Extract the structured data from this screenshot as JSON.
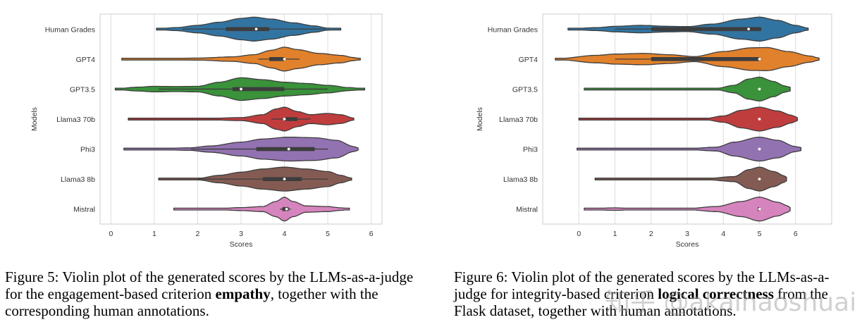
{
  "chart_data": [
    {
      "type": "violin",
      "id": "fig5",
      "title": "",
      "xlabel": "Scores",
      "ylabel": "Models",
      "xlim": [
        -0.25,
        6.25
      ],
      "xticks": [
        0,
        1,
        2,
        3,
        4,
        5,
        6
      ],
      "grid": true,
      "categories": [
        "Human Grades",
        "GPT4",
        "GPT3.5",
        "Llama3 70b",
        "Phi3",
        "Llama3 8b",
        "Mistral"
      ],
      "colors": [
        "#3274a1",
        "#e1812c",
        "#3a923a",
        "#c03d3e",
        "#9372b2",
        "#845b53",
        "#d684bd"
      ],
      "series": [
        {
          "name": "Human Grades",
          "min": 1.05,
          "max": 5.3,
          "q1": 2.65,
          "median": 3.35,
          "q3": 3.65,
          "whisker_low": 1.65,
          "whisker_high": 4.95,
          "density": [
            [
              1.05,
              0.02
            ],
            [
              1.5,
              0.12
            ],
            [
              2.0,
              0.3
            ],
            [
              2.5,
              0.55
            ],
            [
              3.0,
              0.85
            ],
            [
              3.3,
              0.95
            ],
            [
              3.7,
              0.8
            ],
            [
              4.2,
              0.5
            ],
            [
              4.7,
              0.25
            ],
            [
              5.0,
              0.08
            ],
            [
              5.3,
              0.02
            ]
          ]
        },
        {
          "name": "GPT4",
          "min": 0.25,
          "max": 5.75,
          "q1": 3.65,
          "median": 4.0,
          "q3": 4.0,
          "whisker_low": 3.4,
          "whisker_high": 4.35,
          "density": [
            [
              0.25,
              0.02
            ],
            [
              1.0,
              0.04
            ],
            [
              2.0,
              0.08
            ],
            [
              2.8,
              0.18
            ],
            [
              3.3,
              0.35
            ],
            [
              3.7,
              0.7
            ],
            [
              4.0,
              0.95
            ],
            [
              4.3,
              0.75
            ],
            [
              4.8,
              0.45
            ],
            [
              5.3,
              0.3
            ],
            [
              5.6,
              0.12
            ],
            [
              5.75,
              0.04
            ]
          ]
        },
        {
          "name": "GPT3.5",
          "min": 0.1,
          "max": 5.85,
          "q1": 2.8,
          "median": 3.0,
          "q3": 4.0,
          "whisker_low": 1.1,
          "whisker_high": 5.0,
          "density": [
            [
              0.1,
              0.02
            ],
            [
              0.6,
              0.15
            ],
            [
              1.0,
              0.22
            ],
            [
              1.5,
              0.2
            ],
            [
              2.0,
              0.22
            ],
            [
              2.5,
              0.55
            ],
            [
              3.0,
              0.9
            ],
            [
              3.5,
              0.75
            ],
            [
              4.0,
              0.55
            ],
            [
              4.5,
              0.45
            ],
            [
              5.0,
              0.3
            ],
            [
              5.5,
              0.12
            ],
            [
              5.85,
              0.02
            ]
          ]
        },
        {
          "name": "Llama3 70b",
          "min": 0.4,
          "max": 5.6,
          "q1": 4.0,
          "median": 4.0,
          "q3": 4.3,
          "whisker_low": 3.7,
          "whisker_high": 4.6,
          "density": [
            [
              0.4,
              0.02
            ],
            [
              2.0,
              0.03
            ],
            [
              3.0,
              0.12
            ],
            [
              3.5,
              0.35
            ],
            [
              3.8,
              0.8
            ],
            [
              4.0,
              0.95
            ],
            [
              4.3,
              0.6
            ],
            [
              4.6,
              0.35
            ],
            [
              5.0,
              0.45
            ],
            [
              5.3,
              0.35
            ],
            [
              5.6,
              0.08
            ]
          ]
        },
        {
          "name": "Phi3",
          "min": 0.3,
          "max": 5.7,
          "q1": 3.35,
          "median": 4.1,
          "q3": 4.7,
          "whisker_low": 1.85,
          "whisker_high": 5.0,
          "density": [
            [
              0.3,
              0.02
            ],
            [
              1.0,
              0.03
            ],
            [
              1.8,
              0.1
            ],
            [
              2.3,
              0.25
            ],
            [
              3.0,
              0.55
            ],
            [
              3.5,
              0.8
            ],
            [
              4.1,
              0.95
            ],
            [
              4.7,
              0.9
            ],
            [
              5.2,
              0.7
            ],
            [
              5.6,
              0.2
            ],
            [
              5.7,
              0.08
            ]
          ]
        },
        {
          "name": "Llama3 8b",
          "min": 1.1,
          "max": 5.55,
          "q1": 3.5,
          "median": 4.0,
          "q3": 4.4,
          "whisker_low": 2.0,
          "whisker_high": 5.0,
          "density": [
            [
              1.1,
              0.02
            ],
            [
              2.0,
              0.06
            ],
            [
              2.5,
              0.3
            ],
            [
              3.0,
              0.55
            ],
            [
              3.5,
              0.8
            ],
            [
              4.0,
              0.95
            ],
            [
              4.5,
              0.8
            ],
            [
              5.0,
              0.6
            ],
            [
              5.3,
              0.3
            ],
            [
              5.55,
              0.08
            ]
          ]
        },
        {
          "name": "Mistral",
          "min": 1.45,
          "max": 5.5,
          "q1": 3.95,
          "median": 4.05,
          "q3": 4.1,
          "whisker_low": 3.9,
          "whisker_high": 4.15,
          "density": [
            [
              1.45,
              0.02
            ],
            [
              2.5,
              0.05
            ],
            [
              3.0,
              0.12
            ],
            [
              3.5,
              0.2
            ],
            [
              3.8,
              0.6
            ],
            [
              4.0,
              0.95
            ],
            [
              4.2,
              0.6
            ],
            [
              4.5,
              0.25
            ],
            [
              5.0,
              0.2
            ],
            [
              5.3,
              0.1
            ],
            [
              5.5,
              0.04
            ]
          ]
        }
      ]
    },
    {
      "type": "violin",
      "id": "fig6",
      "title": "",
      "xlabel": "Scores",
      "ylabel": "Models",
      "xlim": [
        -1.0,
        7.0
      ],
      "xticks": [
        0,
        1,
        2,
        3,
        4,
        5,
        6
      ],
      "grid": true,
      "categories": [
        "Human Grades",
        "GPT4",
        "GPT3.5",
        "Llama3 70b",
        "Phi3",
        "Llama3 8b",
        "Mistral"
      ],
      "colors": [
        "#3274a1",
        "#e1812c",
        "#3a923a",
        "#c03d3e",
        "#9372b2",
        "#845b53",
        "#d684bd"
      ],
      "series": [
        {
          "name": "Human Grades",
          "min": -0.3,
          "max": 6.35,
          "q1": 2.0,
          "median": 4.7,
          "q3": 5.05,
          "whisker_low": 1.0,
          "whisker_high": 5.05,
          "density": [
            [
              -0.3,
              0.02
            ],
            [
              0.5,
              0.12
            ],
            [
              1.0,
              0.22
            ],
            [
              1.7,
              0.3
            ],
            [
              2.5,
              0.22
            ],
            [
              3.0,
              0.2
            ],
            [
              3.7,
              0.4
            ],
            [
              4.5,
              0.8
            ],
            [
              5.0,
              0.95
            ],
            [
              5.5,
              0.7
            ],
            [
              6.0,
              0.3
            ],
            [
              6.35,
              0.08
            ]
          ]
        },
        {
          "name": "GPT4",
          "min": -0.65,
          "max": 6.65,
          "q1": 2.0,
          "median": 5.0,
          "q3": 5.0,
          "whisker_low": 1.0,
          "whisker_high": 5.0,
          "density": [
            [
              -0.65,
              0.02
            ],
            [
              0.5,
              0.3
            ],
            [
              1.0,
              0.4
            ],
            [
              1.8,
              0.45
            ],
            [
              2.5,
              0.35
            ],
            [
              3.2,
              0.2
            ],
            [
              4.0,
              0.6
            ],
            [
              4.8,
              0.9
            ],
            [
              5.2,
              0.92
            ],
            [
              5.8,
              0.6
            ],
            [
              6.4,
              0.25
            ],
            [
              6.65,
              0.08
            ]
          ]
        },
        {
          "name": "GPT3.5",
          "min": 0.15,
          "max": 5.85,
          "q1": 5.0,
          "median": 5.0,
          "q3": 5.0,
          "whisker_low": 5.0,
          "whisker_high": 5.0,
          "density": [
            [
              0.15,
              0.02
            ],
            [
              1.0,
              0.03
            ],
            [
              2.0,
              0.03
            ],
            [
              3.0,
              0.03
            ],
            [
              3.8,
              0.05
            ],
            [
              4.3,
              0.3
            ],
            [
              4.7,
              0.8
            ],
            [
              5.0,
              0.95
            ],
            [
              5.4,
              0.6
            ],
            [
              5.7,
              0.25
            ],
            [
              5.85,
              0.15
            ]
          ]
        },
        {
          "name": "Llama3 70b",
          "min": 0.0,
          "max": 6.05,
          "q1": 5.0,
          "median": 5.0,
          "q3": 5.0,
          "whisker_low": 5.0,
          "whisker_high": 5.0,
          "density": [
            [
              0.0,
              0.02
            ],
            [
              1.0,
              0.04
            ],
            [
              2.0,
              0.03
            ],
            [
              3.5,
              0.05
            ],
            [
              4.0,
              0.25
            ],
            [
              4.5,
              0.7
            ],
            [
              5.0,
              0.95
            ],
            [
              5.5,
              0.65
            ],
            [
              5.9,
              0.3
            ],
            [
              6.05,
              0.12
            ]
          ]
        },
        {
          "name": "Phi3",
          "min": -0.05,
          "max": 6.15,
          "q1": 5.0,
          "median": 5.0,
          "q3": 5.0,
          "whisker_low": 5.0,
          "whisker_high": 5.0,
          "density": [
            [
              -0.05,
              0.02
            ],
            [
              1.0,
              0.06
            ],
            [
              2.0,
              0.05
            ],
            [
              3.0,
              0.04
            ],
            [
              3.8,
              0.15
            ],
            [
              4.3,
              0.55
            ],
            [
              5.0,
              0.95
            ],
            [
              5.5,
              0.7
            ],
            [
              6.0,
              0.2
            ],
            [
              6.15,
              0.12
            ]
          ]
        },
        {
          "name": "Llama3 8b",
          "min": 0.45,
          "max": 5.75,
          "q1": 5.0,
          "median": 5.0,
          "q3": 5.0,
          "whisker_low": 5.0,
          "whisker_high": 5.0,
          "density": [
            [
              0.45,
              0.02
            ],
            [
              2.0,
              0.03
            ],
            [
              3.5,
              0.04
            ],
            [
              4.3,
              0.2
            ],
            [
              4.7,
              0.75
            ],
            [
              5.0,
              0.95
            ],
            [
              5.4,
              0.6
            ],
            [
              5.7,
              0.25
            ],
            [
              5.75,
              0.15
            ]
          ]
        },
        {
          "name": "Mistral",
          "min": 0.15,
          "max": 5.85,
          "q1": 4.95,
          "median": 5.0,
          "q3": 5.0,
          "whisker_low": 4.95,
          "whisker_high": 5.0,
          "density": [
            [
              0.15,
              0.02
            ],
            [
              1.0,
              0.1
            ],
            [
              1.6,
              0.04
            ],
            [
              3.0,
              0.04
            ],
            [
              3.8,
              0.2
            ],
            [
              4.5,
              0.6
            ],
            [
              5.0,
              0.95
            ],
            [
              5.5,
              0.55
            ],
            [
              5.8,
              0.25
            ],
            [
              5.85,
              0.12
            ]
          ]
        }
      ]
    }
  ],
  "captions": {
    "fig5": {
      "part1": "Figure 5: Violin plot of the generated scores by the LLMs-as-a-judge for the engagement-based criterion ",
      "bold": "empathy",
      "part2": ", together with the corresponding human annotations."
    },
    "fig6": {
      "part1": "Figure 6: Violin plot of the generated scores by the LLMs-as-a-judge for integrity-based criterion ",
      "bold": "logical correctness",
      "part2": " from the Flask dataset, together with human annotations."
    }
  },
  "watermark": "知乎 @akaihaoshuai"
}
